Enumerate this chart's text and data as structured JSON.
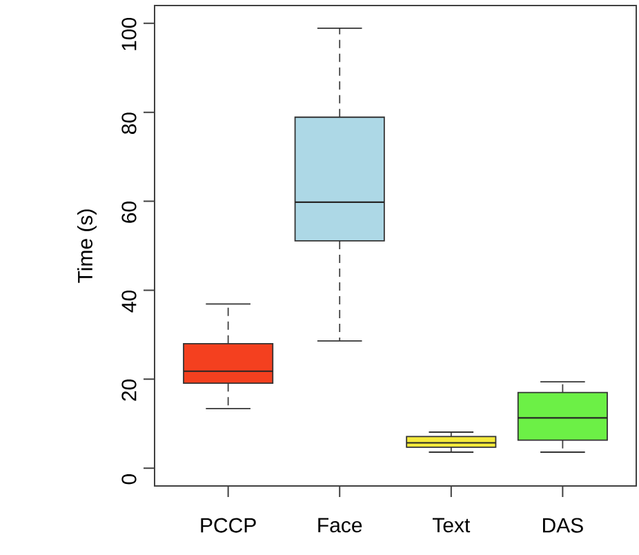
{
  "chart_data": {
    "type": "box",
    "ylabel": "Time (s)",
    "categories": [
      "PCCP",
      "Face",
      "Text",
      "DAS"
    ],
    "colors": [
      "#f4401f",
      "#add8e6",
      "#f5ea3c",
      "#6cf046"
    ],
    "boxes": [
      {
        "low": 13.4,
        "q1": 19.1,
        "median": 21.8,
        "q3": 28.0,
        "high": 36.9
      },
      {
        "low": 28.6,
        "q1": 51.1,
        "median": 59.8,
        "q3": 78.9,
        "high": 98.9
      },
      {
        "low": 3.6,
        "q1": 4.7,
        "median": 5.7,
        "q3": 7.1,
        "high": 8.1
      },
      {
        "low": 3.6,
        "q1": 6.3,
        "median": 11.3,
        "q3": 17.0,
        "high": 19.4
      }
    ],
    "ylim": [
      -4,
      104
    ],
    "yticks": [
      0,
      20,
      40,
      60,
      80,
      100
    ]
  }
}
